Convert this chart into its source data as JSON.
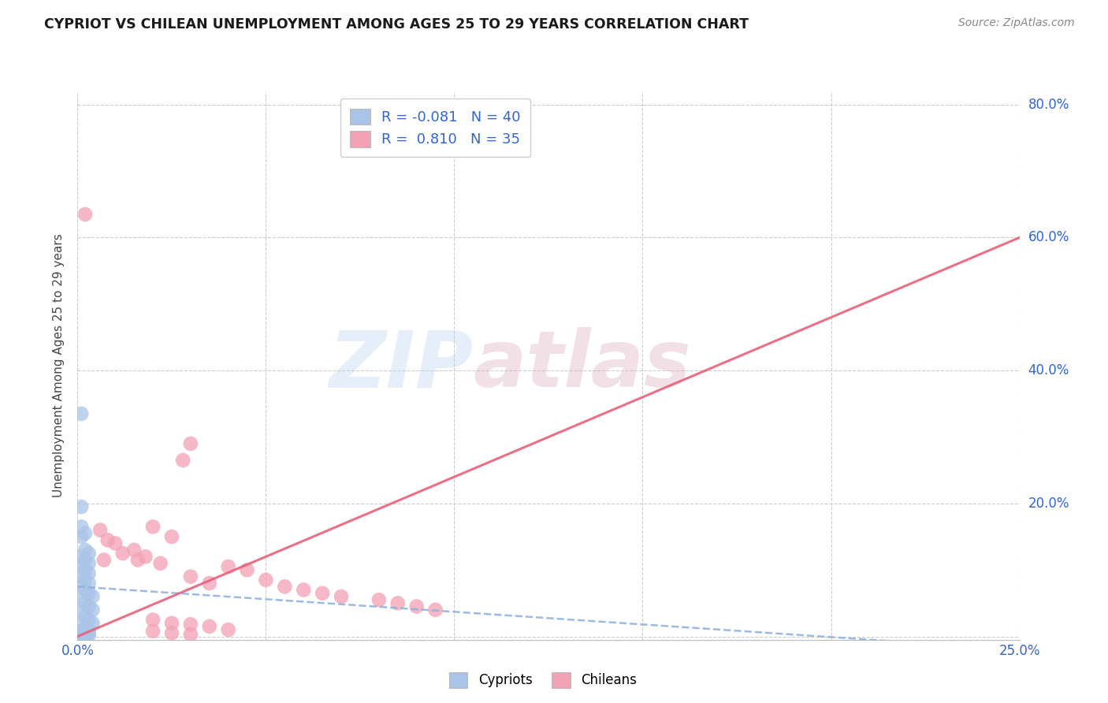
{
  "title": "CYPRIOT VS CHILEAN UNEMPLOYMENT AMONG AGES 25 TO 29 YEARS CORRELATION CHART",
  "source": "Source: ZipAtlas.com",
  "ylabel": "Unemployment Among Ages 25 to 29 years",
  "xlabel": "",
  "xlim": [
    0.0,
    0.25
  ],
  "ylim": [
    -0.005,
    0.82
  ],
  "xticks": [
    0.0,
    0.05,
    0.1,
    0.15,
    0.2,
    0.25
  ],
  "xtick_labels": [
    "0.0%",
    "",
    "",
    "",
    "",
    "25.0%"
  ],
  "yticks": [
    0.0,
    0.2,
    0.4,
    0.6,
    0.8
  ],
  "ytick_labels_right": [
    "",
    "20.0%",
    "40.0%",
    "60.0%",
    "80.0%"
  ],
  "background_color": "#ffffff",
  "grid_color": "#cccccc",
  "watermark1": "ZIP",
  "watermark2": "atlas",
  "legend_r_cypriot": "-0.081",
  "legend_n_cypriot": "40",
  "legend_r_chilean": "0.810",
  "legend_n_chilean": "35",
  "cypriot_color": "#aac4e8",
  "chilean_color": "#f4a0b5",
  "cypriot_line_color": "#8ab0dd",
  "chilean_line_color": "#e8607a",
  "cypriot_points": [
    [
      0.001,
      0.335
    ],
    [
      0.001,
      0.195
    ],
    [
      0.001,
      0.165
    ],
    [
      0.002,
      0.155
    ],
    [
      0.001,
      0.15
    ],
    [
      0.002,
      0.13
    ],
    [
      0.003,
      0.125
    ],
    [
      0.001,
      0.12
    ],
    [
      0.002,
      0.115
    ],
    [
      0.003,
      0.11
    ],
    [
      0.001,
      0.105
    ],
    [
      0.002,
      0.1
    ],
    [
      0.003,
      0.095
    ],
    [
      0.001,
      0.09
    ],
    [
      0.002,
      0.085
    ],
    [
      0.003,
      0.08
    ],
    [
      0.001,
      0.075
    ],
    [
      0.002,
      0.07
    ],
    [
      0.003,
      0.065
    ],
    [
      0.004,
      0.06
    ],
    [
      0.001,
      0.055
    ],
    [
      0.002,
      0.05
    ],
    [
      0.003,
      0.045
    ],
    [
      0.004,
      0.04
    ],
    [
      0.001,
      0.035
    ],
    [
      0.002,
      0.03
    ],
    [
      0.003,
      0.025
    ],
    [
      0.004,
      0.02
    ],
    [
      0.001,
      0.015
    ],
    [
      0.002,
      0.012
    ],
    [
      0.003,
      0.01
    ],
    [
      0.001,
      0.008
    ],
    [
      0.002,
      0.006
    ],
    [
      0.003,
      0.004
    ],
    [
      0.001,
      0.003
    ],
    [
      0.002,
      0.002
    ],
    [
      0.003,
      0.002
    ],
    [
      0.001,
      0.001
    ],
    [
      0.002,
      0.001
    ],
    [
      0.001,
      0.0
    ]
  ],
  "chilean_points": [
    [
      0.002,
      0.635
    ],
    [
      0.03,
      0.29
    ],
    [
      0.028,
      0.265
    ],
    [
      0.02,
      0.165
    ],
    [
      0.006,
      0.16
    ],
    [
      0.025,
      0.15
    ],
    [
      0.008,
      0.145
    ],
    [
      0.01,
      0.14
    ],
    [
      0.015,
      0.13
    ],
    [
      0.012,
      0.125
    ],
    [
      0.018,
      0.12
    ],
    [
      0.016,
      0.115
    ],
    [
      0.022,
      0.11
    ],
    [
      0.04,
      0.105
    ],
    [
      0.007,
      0.115
    ],
    [
      0.045,
      0.1
    ],
    [
      0.03,
      0.09
    ],
    [
      0.05,
      0.085
    ],
    [
      0.035,
      0.08
    ],
    [
      0.055,
      0.075
    ],
    [
      0.06,
      0.07
    ],
    [
      0.065,
      0.065
    ],
    [
      0.07,
      0.06
    ],
    [
      0.08,
      0.055
    ],
    [
      0.085,
      0.05
    ],
    [
      0.09,
      0.045
    ],
    [
      0.095,
      0.04
    ],
    [
      0.02,
      0.025
    ],
    [
      0.025,
      0.02
    ],
    [
      0.03,
      0.018
    ],
    [
      0.035,
      0.015
    ],
    [
      0.04,
      0.01
    ],
    [
      0.02,
      0.008
    ],
    [
      0.025,
      0.005
    ],
    [
      0.03,
      0.003
    ]
  ],
  "cypriot_trendline_x": [
    0.0,
    0.25
  ],
  "cypriot_trendline_y": [
    0.075,
    -0.02
  ],
  "chilean_trendline_x": [
    0.0,
    0.25
  ],
  "chilean_trendline_y": [
    0.0,
    0.6
  ]
}
